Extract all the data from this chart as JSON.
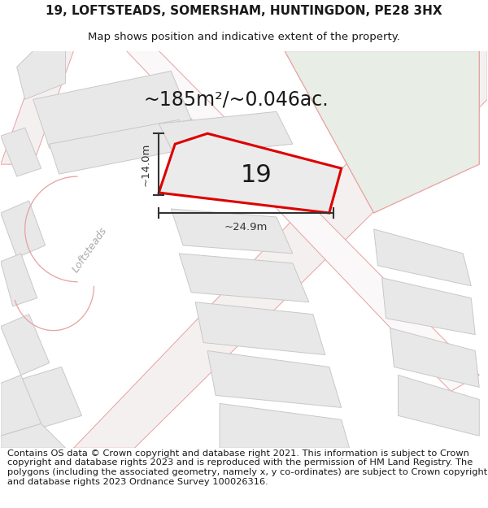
{
  "title_line1": "19, LOFTSTEADS, SOMERSHAM, HUNTINGDON, PE28 3HX",
  "title_line2": "Map shows position and indicative extent of the property.",
  "area_text": "~185m²/~0.046ac.",
  "label_19": "19",
  "dim_height": "~14.0m",
  "dim_width": "~24.9m",
  "street_label": "Loftsteads",
  "footer_text": "Contains OS data © Crown copyright and database right 2021. This information is subject to Crown copyright and database rights 2023 and is reproduced with the permission of HM Land Registry. The polygons (including the associated geometry, namely x, y co-ordinates) are subject to Crown copyright and database rights 2023 Ordnance Survey 100026316.",
  "bg_color": "#ffffff",
  "map_bg": "#faf8f8",
  "gray_fill": "#e8e8e8",
  "green_fill": "#e8ede6",
  "pink_edge": "#e8a0a0",
  "gray_edge": "#c8c8c8",
  "highlight_red": "#dd0000",
  "text_color": "#1a1a1a",
  "dim_color": "#333333",
  "street_color": "#aaaaaa",
  "title_fontsize": 11,
  "subtitle_fontsize": 9.5,
  "footer_fontsize": 8.2,
  "area_fontsize": 17,
  "label_fontsize": 22,
  "dim_fontsize": 9.5,
  "street_fontsize": 9
}
